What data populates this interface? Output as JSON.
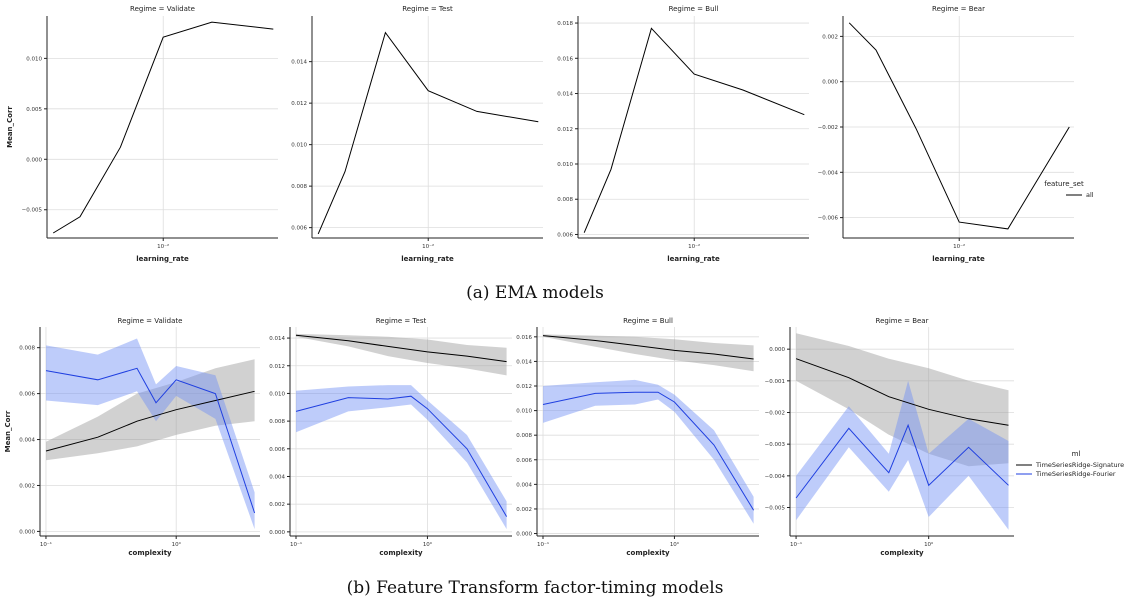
{
  "rows": [
    {
      "caption": "(a) EMA models",
      "ylabel": "Mean_Corr",
      "xlabel": "learning_rate",
      "legend": {
        "title": "feature_set",
        "entries": [
          {
            "label": "all",
            "color": "#000000"
          }
        ]
      },
      "chart_data": [
        {
          "type": "line",
          "title": "Regime = Validate",
          "xscale": "log",
          "xlim": [
            0.0038,
            0.026
          ],
          "xticks": [
            {
              "value": 0.01,
              "label": "10⁻²"
            }
          ],
          "ylim": [
            -0.0078,
            0.0142
          ],
          "yticks": [
            {
              "value": -0.005,
              "label": "−0.005"
            },
            {
              "value": 0.0,
              "label": "0.000"
            },
            {
              "value": 0.005,
              "label": "0.005"
            },
            {
              "value": 0.01,
              "label": "0.010"
            }
          ],
          "series": [
            {
              "name": "all",
              "color": "#000000",
              "x": [
                0.004,
                0.005,
                0.007,
                0.01,
                0.015,
                0.025
              ],
              "y": [
                -0.0073,
                -0.0057,
                0.0012,
                0.0121,
                0.0136,
                0.0129
              ]
            }
          ]
        },
        {
          "type": "line",
          "title": "Regime = Test",
          "xscale": "log",
          "xlim": [
            0.0038,
            0.026
          ],
          "xticks": [
            {
              "value": 0.01,
              "label": "10⁻²"
            }
          ],
          "ylim": [
            0.0055,
            0.0162
          ],
          "yticks": [
            {
              "value": 0.006,
              "label": "0.006"
            },
            {
              "value": 0.008,
              "label": "0.008"
            },
            {
              "value": 0.01,
              "label": "0.010"
            },
            {
              "value": 0.012,
              "label": "0.012"
            },
            {
              "value": 0.014,
              "label": "0.014"
            }
          ],
          "series": [
            {
              "name": "all",
              "color": "#000000",
              "x": [
                0.004,
                0.005,
                0.007,
                0.01,
                0.015,
                0.025
              ],
              "y": [
                0.0057,
                0.0087,
                0.0154,
                0.0126,
                0.0116,
                0.0111
              ]
            }
          ]
        },
        {
          "type": "line",
          "title": "Regime = Bull",
          "xscale": "log",
          "xlim": [
            0.0038,
            0.026
          ],
          "xticks": [
            {
              "value": 0.01,
              "label": "10⁻²"
            }
          ],
          "ylim": [
            0.0058,
            0.0184
          ],
          "yticks": [
            {
              "value": 0.006,
              "label": "0.006"
            },
            {
              "value": 0.008,
              "label": "0.008"
            },
            {
              "value": 0.01,
              "label": "0.010"
            },
            {
              "value": 0.012,
              "label": "0.012"
            },
            {
              "value": 0.014,
              "label": "0.014"
            },
            {
              "value": 0.016,
              "label": "0.016"
            },
            {
              "value": 0.018,
              "label": "0.018"
            }
          ],
          "series": [
            {
              "name": "all",
              "color": "#000000",
              "x": [
                0.004,
                0.005,
                0.007,
                0.01,
                0.015,
                0.025
              ],
              "y": [
                0.0061,
                0.0097,
                0.0177,
                0.0151,
                0.0142,
                0.0128
              ]
            }
          ]
        },
        {
          "type": "line",
          "title": "Regime = Bear",
          "xscale": "log",
          "xlim": [
            0.0038,
            0.026
          ],
          "xticks": [
            {
              "value": 0.01,
              "label": "10⁻²"
            }
          ],
          "ylim": [
            -0.0069,
            0.0029
          ],
          "yticks": [
            {
              "value": -0.006,
              "label": "−0.006"
            },
            {
              "value": -0.004,
              "label": "−0.004"
            },
            {
              "value": -0.002,
              "label": "−0.002"
            },
            {
              "value": 0.0,
              "label": "0.000"
            },
            {
              "value": 0.002,
              "label": "0.002"
            }
          ],
          "series": [
            {
              "name": "all",
              "color": "#000000",
              "x": [
                0.004,
                0.005,
                0.007,
                0.01,
                0.015,
                0.025
              ],
              "y": [
                0.0026,
                0.0014,
                -0.0021,
                -0.0062,
                -0.0065,
                -0.002
              ]
            }
          ]
        }
      ]
    },
    {
      "caption": "(b) Feature Transform factor-timing models",
      "ylabel": "Mean_Corr",
      "xlabel": "complexity",
      "legend": {
        "title": "ml",
        "entries": [
          {
            "label": "TimeSeriesRidge-Signature",
            "color": "#000000"
          },
          {
            "label": "TimeSeriesRidge-Fourier",
            "color": "#1f3fe0"
          }
        ]
      },
      "chart_data": [
        {
          "type": "line",
          "title": "Regime = Validate",
          "xscale": "log",
          "xlim": [
            0.09,
            4.4
          ],
          "xticks": [
            {
              "value": 0.1,
              "label": "10⁻¹"
            },
            {
              "value": 1,
              "label": "10⁰"
            }
          ],
          "ylim": [
            -0.0002,
            0.0089
          ],
          "yticks": [
            {
              "value": 0.0,
              "label": "0.000"
            },
            {
              "value": 0.002,
              "label": "0.002"
            },
            {
              "value": 0.004,
              "label": "0.004"
            },
            {
              "value": 0.006,
              "label": "0.006"
            },
            {
              "value": 0.008,
              "label": "0.008"
            }
          ],
          "series": [
            {
              "name": "TimeSeriesRidge-Signature",
              "color": "#000000",
              "band": "#999999",
              "x": [
                0.1,
                0.25,
                0.5,
                1,
                2,
                4
              ],
              "y": [
                0.0035,
                0.0041,
                0.0048,
                0.0053,
                0.0057,
                0.0061
              ],
              "lower": [
                0.0031,
                0.0034,
                0.0037,
                0.0042,
                0.0046,
                0.0048
              ],
              "upper": [
                0.0039,
                0.005,
                0.006,
                0.0065,
                0.0071,
                0.0075
              ]
            },
            {
              "name": "TimeSeriesRidge-Fourier",
              "color": "#1f3fe0",
              "band": "#6f8ff5",
              "x": [
                0.1,
                0.25,
                0.5,
                0.7,
                1,
                2,
                4
              ],
              "y": [
                0.007,
                0.0066,
                0.0071,
                0.0056,
                0.0066,
                0.006,
                0.0008
              ],
              "lower": [
                0.0057,
                0.0055,
                0.0061,
                0.0048,
                0.0059,
                0.0049,
                0.0001
              ],
              "upper": [
                0.0081,
                0.0077,
                0.0084,
                0.0064,
                0.0072,
                0.0068,
                0.0017
              ]
            }
          ]
        },
        {
          "type": "line",
          "title": "Regime = Test",
          "xscale": "log",
          "xlim": [
            0.09,
            4.4
          ],
          "xticks": [
            {
              "value": 0.1,
              "label": "10⁻¹"
            },
            {
              "value": 1,
              "label": "10⁰"
            }
          ],
          "ylim": [
            -0.0003,
            0.0148
          ],
          "yticks": [
            {
              "value": 0.0,
              "label": "0.000"
            },
            {
              "value": 0.002,
              "label": "0.002"
            },
            {
              "value": 0.004,
              "label": "0.004"
            },
            {
              "value": 0.006,
              "label": "0.006"
            },
            {
              "value": 0.008,
              "label": "0.008"
            },
            {
              "value": 0.01,
              "label": "0.010"
            },
            {
              "value": 0.012,
              "label": "0.012"
            },
            {
              "value": 0.014,
              "label": "0.014"
            }
          ],
          "series": [
            {
              "name": "TimeSeriesRidge-Signature",
              "color": "#000000",
              "band": "#999999",
              "x": [
                0.1,
                0.25,
                0.5,
                1,
                2,
                4
              ],
              "y": [
                0.0142,
                0.0138,
                0.0134,
                0.013,
                0.0127,
                0.0123
              ],
              "lower": [
                0.0141,
                0.0134,
                0.0127,
                0.0122,
                0.0118,
                0.0113
              ],
              "upper": [
                0.0143,
                0.0142,
                0.0141,
                0.0139,
                0.0135,
                0.0133
              ]
            },
            {
              "name": "TimeSeriesRidge-Fourier",
              "color": "#1f3fe0",
              "band": "#6f8ff5",
              "x": [
                0.1,
                0.25,
                0.5,
                0.75,
                1,
                2,
                4
              ],
              "y": [
                0.0087,
                0.0097,
                0.0096,
                0.0098,
                0.0089,
                0.006,
                0.0011
              ],
              "lower": [
                0.0072,
                0.0087,
                0.009,
                0.0092,
                0.0081,
                0.005,
                0.0002
              ],
              "upper": [
                0.0102,
                0.0105,
                0.0106,
                0.0106,
                0.0095,
                0.007,
                0.0022
              ]
            }
          ]
        },
        {
          "type": "line",
          "title": "Regime = Bull",
          "xscale": "log",
          "xlim": [
            0.09,
            4.4
          ],
          "xticks": [
            {
              "value": 0.1,
              "label": "10⁻¹"
            },
            {
              "value": 1,
              "label": "10⁰"
            }
          ],
          "ylim": [
            -0.0002,
            0.0168
          ],
          "yticks": [
            {
              "value": 0.0,
              "label": "0.000"
            },
            {
              "value": 0.002,
              "label": "0.002"
            },
            {
              "value": 0.004,
              "label": "0.004"
            },
            {
              "value": 0.006,
              "label": "0.006"
            },
            {
              "value": 0.008,
              "label": "0.008"
            },
            {
              "value": 0.01,
              "label": "0.010"
            },
            {
              "value": 0.012,
              "label": "0.012"
            },
            {
              "value": 0.014,
              "label": "0.014"
            },
            {
              "value": 0.016,
              "label": "0.016"
            }
          ],
          "series": [
            {
              "name": "TimeSeriesRidge-Signature",
              "color": "#000000",
              "band": "#999999",
              "x": [
                0.1,
                0.25,
                0.5,
                1,
                2,
                4
              ],
              "y": [
                0.0161,
                0.0157,
                0.0153,
                0.0149,
                0.0146,
                0.0142
              ],
              "lower": [
                0.016,
                0.0152,
                0.0146,
                0.0141,
                0.0137,
                0.0132
              ],
              "upper": [
                0.0162,
                0.0161,
                0.016,
                0.0158,
                0.0155,
                0.0153
              ]
            },
            {
              "name": "TimeSeriesRidge-Fourier",
              "color": "#1f3fe0",
              "band": "#6f8ff5",
              "x": [
                0.1,
                0.25,
                0.5,
                0.75,
                1,
                2,
                4
              ],
              "y": [
                0.0105,
                0.0114,
                0.0115,
                0.0115,
                0.0107,
                0.0072,
                0.0019
              ],
              "lower": [
                0.009,
                0.0104,
                0.0105,
                0.0109,
                0.0099,
                0.006,
                0.0008
              ],
              "upper": [
                0.012,
                0.0123,
                0.0125,
                0.0121,
                0.0113,
                0.0084,
                0.003
              ]
            }
          ]
        },
        {
          "type": "line",
          "title": "Regime = Bear",
          "xscale": "log",
          "xlim": [
            0.09,
            4.4
          ],
          "xticks": [
            {
              "value": 0.1,
              "label": "10⁻¹"
            },
            {
              "value": 1,
              "label": "10⁰"
            }
          ],
          "ylim": [
            -0.0059,
            0.0007
          ],
          "yticks": [
            {
              "value": -0.005,
              "label": "−0.005"
            },
            {
              "value": -0.004,
              "label": "−0.004"
            },
            {
              "value": -0.003,
              "label": "−0.003"
            },
            {
              "value": -0.002,
              "label": "−0.002"
            },
            {
              "value": -0.001,
              "label": "−0.001"
            },
            {
              "value": 0.0,
              "label": "0.000"
            }
          ],
          "series": [
            {
              "name": "TimeSeriesRidge-Signature",
              "color": "#000000",
              "band": "#999999",
              "x": [
                0.1,
                0.25,
                0.5,
                1,
                2,
                4
              ],
              "y": [
                -0.0003,
                -0.0009,
                -0.0015,
                -0.0019,
                -0.0022,
                -0.0024
              ],
              "lower": [
                -0.001,
                -0.0019,
                -0.0027,
                -0.0033,
                -0.0037,
                -0.0036
              ],
              "upper": [
                0.0005,
                0.0001,
                -0.0003,
                -0.0006,
                -0.001,
                -0.0013
              ]
            },
            {
              "name": "TimeSeriesRidge-Fourier",
              "color": "#1f3fe0",
              "band": "#6f8ff5",
              "x": [
                0.1,
                0.25,
                0.5,
                0.7,
                1,
                2,
                4
              ],
              "y": [
                -0.0047,
                -0.0025,
                -0.0039,
                -0.0024,
                -0.0043,
                -0.0031,
                -0.0043
              ],
              "lower": [
                -0.0054,
                -0.0031,
                -0.0045,
                -0.0035,
                -0.0053,
                -0.004,
                -0.0057
              ],
              "upper": [
                -0.004,
                -0.0018,
                -0.0033,
                -0.001,
                -0.0033,
                -0.0022,
                -0.0029
              ]
            }
          ]
        }
      ]
    }
  ]
}
